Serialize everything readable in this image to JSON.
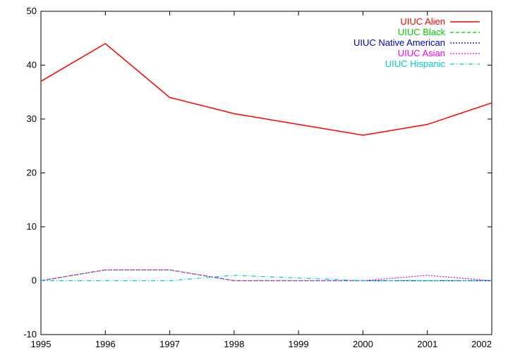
{
  "chart_data": {
    "type": "line",
    "title": "",
    "xlabel": "",
    "ylabel": "",
    "x": [
      1995,
      1996,
      1997,
      1998,
      1999,
      2000,
      2001,
      2002
    ],
    "xlim": [
      1995,
      2002
    ],
    "ylim": [
      -10,
      50
    ],
    "xticks": [
      "1995",
      "1996",
      "1997",
      "1998",
      "1999",
      "2000",
      "2001",
      "2002"
    ],
    "yticks": [
      "-10",
      "0",
      "10",
      "20",
      "30",
      "40",
      "50"
    ],
    "grid": false,
    "legend_position": "top-right",
    "series": [
      {
        "name": "UIUC Alien",
        "color": "#ff0000",
        "dash": "solid",
        "values": [
          37,
          44,
          34,
          31,
          29,
          27,
          29,
          33
        ]
      },
      {
        "name": "UIUC Black",
        "color": "#00cc00",
        "dash": "dashed",
        "values": [
          0,
          2,
          2,
          0,
          0,
          0,
          0,
          0
        ]
      },
      {
        "name": "UIUC Native American",
        "color": "#0000cc",
        "dash": "dotted",
        "values": [
          0,
          2,
          2,
          0,
          0,
          0,
          0,
          0
        ]
      },
      {
        "name": "UIUC Asian",
        "color": "#ff00ff",
        "dash": "dotted",
        "values": [
          0,
          2,
          2,
          0,
          0,
          0,
          1,
          0
        ]
      },
      {
        "name": "UIUC Hispanic",
        "color": "#00cccc",
        "dash": "dashdot",
        "values": [
          0,
          0,
          0,
          1,
          0.5,
          0,
          0,
          0
        ]
      }
    ]
  }
}
